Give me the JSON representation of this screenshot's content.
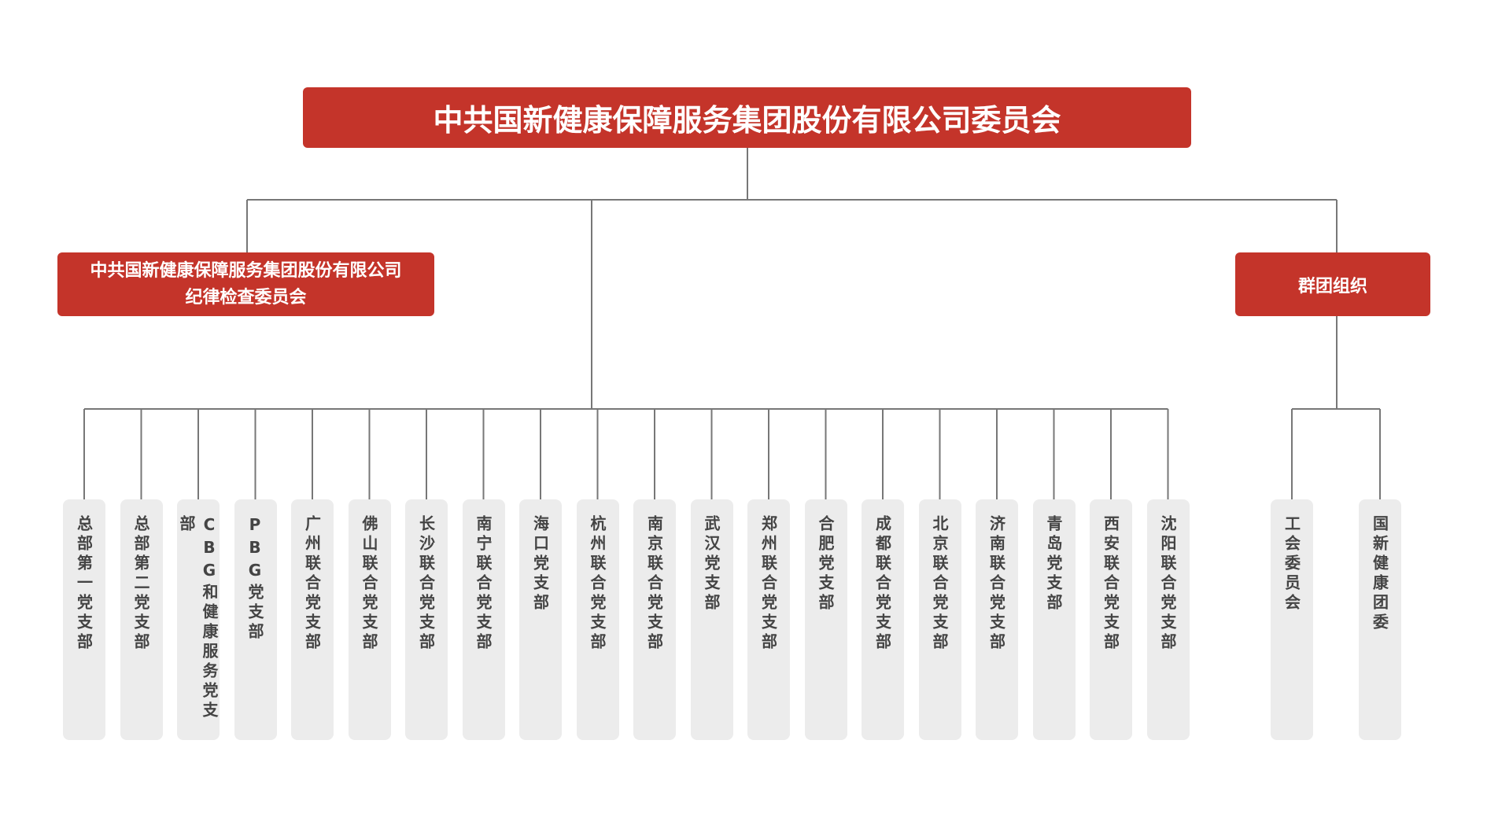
{
  "title": "中共国新健康保障服务集团股份有限公司委员会",
  "discipline": {
    "lines": [
      "中共国新健康保障服务集团股份有限公司",
      "纪律检查委员会"
    ]
  },
  "branches": [
    "总部第一党支部",
    "总部第二党支部",
    "CBG和健康服务党支部",
    "PBG党支部",
    "广州联合党支部",
    "佛山联合党支部",
    "长沙联合党支部",
    "南宁联合党支部",
    "海口党支部",
    "杭州联合党支部",
    "南京联合党支部",
    "武汉党支部",
    "郑州联合党支部",
    "合肥党支部",
    "成都联合党支部",
    "北京联合党支部",
    "济南联合党支部",
    "青岛党支部",
    "西安联合党支部",
    "沈阳联合党支部"
  ],
  "groups": {
    "label": "群团组织",
    "children": [
      "工会委员会",
      "国新健康团委"
    ]
  }
}
